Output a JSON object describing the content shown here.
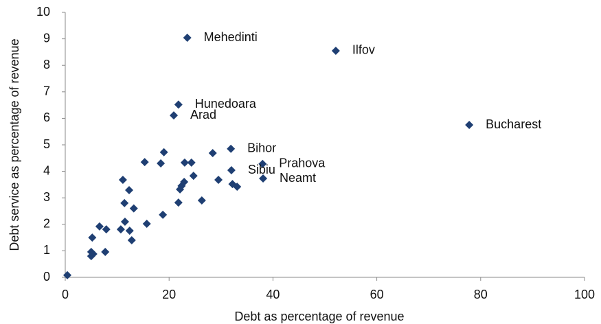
{
  "chart_data": {
    "type": "scatter",
    "xlabel": "Debt as percentage of revenue",
    "ylabel": "Debt service as percentage of revenue",
    "x": [
      23.5,
      52.1,
      21.8,
      20.9,
      77.8,
      31.9,
      38.0,
      32.0,
      38.1,
      0.4,
      5.0,
      5.0,
      5.4,
      7.7,
      5.2,
      6.6,
      7.9,
      10.7,
      11.5,
      12.4,
      12.8,
      11.4,
      13.2,
      15.7,
      11.1,
      12.3,
      15.3,
      18.4,
      19.0,
      18.8,
      21.8,
      22.1,
      22.4,
      22.9,
      23.0,
      24.3,
      24.7,
      26.3,
      28.4,
      29.5,
      32.2,
      33.1
    ],
    "y": [
      9.04,
      8.55,
      6.52,
      6.11,
      5.75,
      4.85,
      4.28,
      4.04,
      3.73,
      0.08,
      0.96,
      0.8,
      0.88,
      0.96,
      1.5,
      1.92,
      1.81,
      1.81,
      2.1,
      1.76,
      1.4,
      2.8,
      2.6,
      2.02,
      3.68,
      3.29,
      4.35,
      4.3,
      4.72,
      2.36,
      2.82,
      3.32,
      3.45,
      3.6,
      4.33,
      4.33,
      3.83,
      2.9,
      4.69,
      3.68,
      3.52,
      3.42
    ],
    "labels": [
      "Mehedinti",
      "Ilfov",
      "Hunedoara",
      "Arad",
      "Bucharest",
      "Bihor",
      "Prahova",
      "Sibiu",
      "Neamt",
      null,
      null,
      null,
      null,
      null,
      null,
      null,
      null,
      null,
      null,
      null,
      null,
      null,
      null,
      null,
      null,
      null,
      null,
      null,
      null,
      null,
      null,
      null,
      null,
      null,
      null,
      null,
      null,
      null,
      null,
      null,
      null,
      null
    ],
    "color": "#1f3f73",
    "xlim": [
      0,
      100
    ],
    "xticks": [
      0,
      20,
      40,
      60,
      80,
      100
    ],
    "ylim": [
      0,
      10
    ],
    "yticks": [
      0,
      1,
      2,
      3,
      4,
      5,
      6,
      7,
      8,
      9,
      10
    ],
    "grid": false
  }
}
